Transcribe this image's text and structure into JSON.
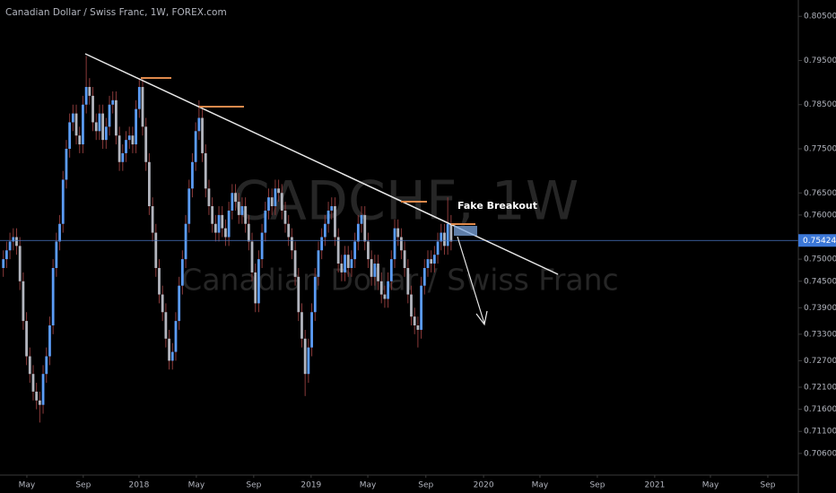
{
  "chart_data": {
    "type": "candlestick",
    "title": "Canadian Dollar / Swiss Franc, 1W, FOREX.com",
    "watermark": "CADCHF, 1W",
    "watermark_subtitle": "Canadian Dollar / Swiss Franc",
    "annotation": "Fake Breakout",
    "up_color": "#5b9cf6",
    "down_color": "#b2b5be",
    "wick_color": "#8a3a3a",
    "x": [
      1,
      2,
      3,
      4,
      5,
      6,
      7,
      8,
      9,
      10,
      11,
      12,
      13,
      14,
      15,
      16,
      17,
      18,
      19,
      20,
      21,
      22,
      23,
      24,
      25,
      26,
      27,
      28,
      29,
      30,
      31,
      32,
      33,
      34,
      35,
      36,
      37,
      38,
      39,
      40,
      41,
      42,
      43,
      44,
      45,
      46,
      47,
      48,
      49,
      50,
      51,
      52,
      53,
      54,
      55,
      56,
      57,
      58,
      59,
      60,
      61,
      62,
      63,
      64,
      65,
      66,
      67,
      68,
      69,
      70,
      71,
      72,
      73,
      74,
      75,
      76,
      77,
      78,
      79,
      80,
      81,
      82,
      83,
      84,
      85,
      86,
      87,
      88,
      89,
      90,
      91,
      92,
      93,
      94,
      95,
      96,
      97,
      98,
      99,
      100,
      101,
      102,
      103,
      104,
      105,
      106,
      107,
      108,
      109,
      110,
      111,
      112,
      113,
      114,
      115,
      116,
      117,
      118,
      119,
      120,
      121,
      122,
      123,
      124,
      125,
      126,
      127,
      128,
      129,
      130,
      131,
      132,
      133,
      134,
      135,
      136
    ],
    "open": [
      0.748,
      0.75,
      0.752,
      0.754,
      0.755,
      0.753,
      0.745,
      0.736,
      0.728,
      0.724,
      0.72,
      0.718,
      0.717,
      0.724,
      0.728,
      0.735,
      0.748,
      0.754,
      0.758,
      0.768,
      0.775,
      0.781,
      0.783,
      0.778,
      0.776,
      0.785,
      0.789,
      0.787,
      0.781,
      0.779,
      0.783,
      0.777,
      0.78,
      0.785,
      0.786,
      0.778,
      0.772,
      0.774,
      0.777,
      0.778,
      0.776,
      0.784,
      0.789,
      0.78,
      0.772,
      0.762,
      0.756,
      0.748,
      0.742,
      0.738,
      0.732,
      0.727,
      0.729,
      0.736,
      0.744,
      0.75,
      0.758,
      0.766,
      0.772,
      0.779,
      0.782,
      0.774,
      0.766,
      0.762,
      0.758,
      0.756,
      0.76,
      0.757,
      0.755,
      0.761,
      0.765,
      0.763,
      0.76,
      0.762,
      0.758,
      0.754,
      0.747,
      0.74,
      0.75,
      0.756,
      0.761,
      0.764,
      0.762,
      0.766,
      0.765,
      0.761,
      0.758,
      0.755,
      0.752,
      0.746,
      0.738,
      0.732,
      0.724,
      0.73,
      0.738,
      0.746,
      0.752,
      0.755,
      0.758,
      0.761,
      0.762,
      0.755,
      0.749,
      0.747,
      0.751,
      0.748,
      0.75,
      0.754,
      0.758,
      0.76,
      0.754,
      0.75,
      0.746,
      0.749,
      0.745,
      0.742,
      0.741,
      0.745,
      0.75,
      0.757,
      0.755,
      0.752,
      0.748,
      0.742,
      0.737,
      0.735,
      0.734,
      0.744,
      0.748,
      0.75,
      0.749,
      0.751,
      0.754,
      0.756,
      0.753,
      0.758
    ],
    "high": [
      0.752,
      0.754,
      0.756,
      0.757,
      0.757,
      0.755,
      0.747,
      0.738,
      0.73,
      0.726,
      0.722,
      0.72,
      0.726,
      0.73,
      0.737,
      0.75,
      0.756,
      0.76,
      0.77,
      0.777,
      0.783,
      0.785,
      0.785,
      0.78,
      0.787,
      0.796,
      0.791,
      0.789,
      0.783,
      0.785,
      0.785,
      0.782,
      0.787,
      0.788,
      0.788,
      0.78,
      0.776,
      0.779,
      0.78,
      0.78,
      0.786,
      0.791,
      0.791,
      0.782,
      0.774,
      0.764,
      0.758,
      0.75,
      0.744,
      0.74,
      0.734,
      0.731,
      0.738,
      0.746,
      0.752,
      0.76,
      0.768,
      0.774,
      0.781,
      0.786,
      0.784,
      0.776,
      0.768,
      0.764,
      0.76,
      0.762,
      0.762,
      0.759,
      0.763,
      0.767,
      0.767,
      0.765,
      0.764,
      0.764,
      0.76,
      0.756,
      0.749,
      0.752,
      0.758,
      0.763,
      0.766,
      0.766,
      0.768,
      0.768,
      0.767,
      0.763,
      0.76,
      0.757,
      0.754,
      0.748,
      0.74,
      0.734,
      0.732,
      0.74,
      0.748,
      0.754,
      0.757,
      0.76,
      0.763,
      0.764,
      0.764,
      0.757,
      0.751,
      0.753,
      0.753,
      0.752,
      0.756,
      0.76,
      0.762,
      0.762,
      0.756,
      0.752,
      0.751,
      0.751,
      0.747,
      0.744,
      0.747,
      0.752,
      0.759,
      0.759,
      0.757,
      0.754,
      0.75,
      0.744,
      0.739,
      0.737,
      0.746,
      0.75,
      0.752,
      0.752,
      0.753,
      0.756,
      0.758,
      0.758,
      0.764,
      0.76
    ],
    "low": [
      0.746,
      0.748,
      0.75,
      0.752,
      0.751,
      0.743,
      0.734,
      0.726,
      0.722,
      0.718,
      0.716,
      0.713,
      0.715,
      0.722,
      0.726,
      0.733,
      0.746,
      0.752,
      0.756,
      0.766,
      0.773,
      0.779,
      0.776,
      0.774,
      0.774,
      0.783,
      0.785,
      0.779,
      0.777,
      0.777,
      0.775,
      0.775,
      0.778,
      0.783,
      0.776,
      0.77,
      0.77,
      0.772,
      0.775,
      0.774,
      0.774,
      0.782,
      0.778,
      0.77,
      0.76,
      0.754,
      0.746,
      0.74,
      0.736,
      0.73,
      0.725,
      0.725,
      0.727,
      0.734,
      0.742,
      0.748,
      0.756,
      0.764,
      0.77,
      0.777,
      0.772,
      0.764,
      0.76,
      0.756,
      0.754,
      0.754,
      0.755,
      0.753,
      0.753,
      0.759,
      0.761,
      0.758,
      0.758,
      0.756,
      0.752,
      0.745,
      0.738,
      0.738,
      0.748,
      0.754,
      0.759,
      0.76,
      0.76,
      0.763,
      0.759,
      0.756,
      0.753,
      0.75,
      0.744,
      0.736,
      0.73,
      0.719,
      0.722,
      0.728,
      0.736,
      0.744,
      0.75,
      0.753,
      0.756,
      0.759,
      0.753,
      0.747,
      0.745,
      0.745,
      0.746,
      0.746,
      0.748,
      0.752,
      0.756,
      0.752,
      0.748,
      0.744,
      0.744,
      0.743,
      0.74,
      0.739,
      0.739,
      0.743,
      0.748,
      0.753,
      0.75,
      0.746,
      0.74,
      0.735,
      0.733,
      0.73,
      0.732,
      0.742,
      0.746,
      0.747,
      0.747,
      0.749,
      0.752,
      0.751,
      0.751,
      0.752
    ],
    "close": [
      0.75,
      0.752,
      0.754,
      0.755,
      0.753,
      0.745,
      0.736,
      0.728,
      0.724,
      0.72,
      0.718,
      0.717,
      0.724,
      0.728,
      0.735,
      0.748,
      0.754,
      0.758,
      0.768,
      0.775,
      0.781,
      0.783,
      0.778,
      0.776,
      0.785,
      0.789,
      0.787,
      0.781,
      0.779,
      0.783,
      0.777,
      0.78,
      0.785,
      0.786,
      0.778,
      0.772,
      0.774,
      0.777,
      0.778,
      0.776,
      0.784,
      0.789,
      0.78,
      0.772,
      0.762,
      0.756,
      0.748,
      0.742,
      0.738,
      0.732,
      0.727,
      0.729,
      0.736,
      0.744,
      0.75,
      0.758,
      0.766,
      0.772,
      0.779,
      0.782,
      0.774,
      0.766,
      0.762,
      0.758,
      0.756,
      0.76,
      0.757,
      0.755,
      0.761,
      0.765,
      0.763,
      0.76,
      0.762,
      0.758,
      0.754,
      0.747,
      0.74,
      0.75,
      0.756,
      0.761,
      0.764,
      0.762,
      0.766,
      0.765,
      0.761,
      0.758,
      0.755,
      0.752,
      0.746,
      0.738,
      0.732,
      0.724,
      0.73,
      0.738,
      0.746,
      0.752,
      0.755,
      0.758,
      0.761,
      0.762,
      0.755,
      0.749,
      0.747,
      0.751,
      0.748,
      0.75,
      0.754,
      0.758,
      0.76,
      0.754,
      0.75,
      0.746,
      0.749,
      0.745,
      0.742,
      0.741,
      0.745,
      0.75,
      0.757,
      0.755,
      0.752,
      0.748,
      0.742,
      0.737,
      0.735,
      0.734,
      0.744,
      0.748,
      0.75,
      0.749,
      0.751,
      0.754,
      0.756,
      0.753,
      0.758,
      0.754
    ],
    "last_price": 0.75424,
    "xlim": [
      0,
      240.7
    ],
    "ylim": [
      0.7011,
      0.8087
    ],
    "yticks": [
      {
        "value": 0.805,
        "label": "0.80500"
      },
      {
        "value": 0.795,
        "label": "0.79500"
      },
      {
        "value": 0.785,
        "label": "0.78500"
      },
      {
        "value": 0.775,
        "label": "0.77500"
      },
      {
        "value": 0.765,
        "label": "0.76500"
      },
      {
        "value": 0.76,
        "label": "0.76000"
      },
      {
        "value": 0.75,
        "label": "0.75000"
      },
      {
        "value": 0.745,
        "label": "0.74500"
      },
      {
        "value": 0.739,
        "label": "0.73900"
      },
      {
        "value": 0.733,
        "label": "0.73300"
      },
      {
        "value": 0.727,
        "label": "0.72700"
      },
      {
        "value": 0.721,
        "label": "0.72100"
      },
      {
        "value": 0.716,
        "label": "0.71600"
      },
      {
        "value": 0.711,
        "label": "0.71100"
      },
      {
        "value": 0.706,
        "label": "0.70600"
      }
    ],
    "xticks": [
      {
        "value": 8.1,
        "label": "May"
      },
      {
        "value": 25.1,
        "label": "Sep"
      },
      {
        "value": 41.9,
        "label": "2018"
      },
      {
        "value": 59.2,
        "label": "May"
      },
      {
        "value": 76.5,
        "label": "Sep"
      },
      {
        "value": 93.8,
        "label": "2019"
      },
      {
        "value": 110.9,
        "label": "May"
      },
      {
        "value": 128.4,
        "label": "Sep"
      },
      {
        "value": 145.8,
        "label": "2020"
      },
      {
        "value": 162.8,
        "label": "May"
      },
      {
        "value": 180.1,
        "label": "Sep"
      },
      {
        "value": 197.4,
        "label": "2021"
      },
      {
        "value": 214.2,
        "label": "May"
      },
      {
        "value": 231.5,
        "label": "Sep"
      }
    ]
  }
}
